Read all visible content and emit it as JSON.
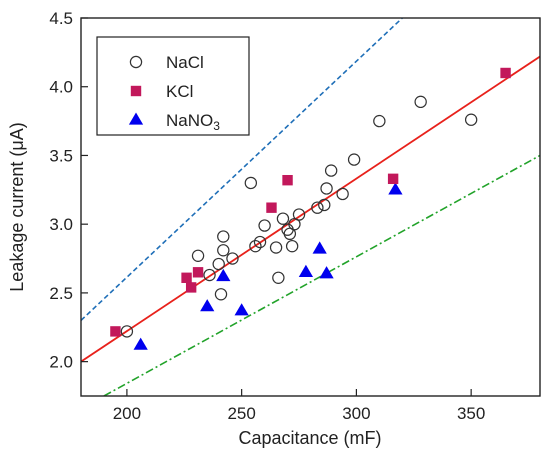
{
  "chart_data": {
    "type": "scatter",
    "xlabel": "Capacitance (mF)",
    "ylabel": "Leakage current (μA)",
    "xlim": [
      180,
      380
    ],
    "ylim": [
      1.75,
      4.5
    ],
    "xticks": [
      "200",
      "250",
      "300",
      "350"
    ],
    "xtick_values": [
      200,
      250,
      300,
      350
    ],
    "yticks": [
      "2.0",
      "2.5",
      "3.0",
      "3.5",
      "4.0",
      "4.5"
    ],
    "ytick_values": [
      2.0,
      2.5,
      3.0,
      3.5,
      4.0,
      4.5
    ],
    "legend_position": "top-left",
    "series": [
      {
        "name": "NaCl",
        "marker": "open-circle",
        "color": "#333333",
        "points": [
          [
            200,
            2.22
          ],
          [
            236,
            2.63
          ],
          [
            240,
            2.71
          ],
          [
            241,
            2.49
          ],
          [
            242,
            2.81
          ],
          [
            242,
            2.91
          ],
          [
            231,
            2.77
          ],
          [
            246,
            2.75
          ],
          [
            254,
            3.3
          ],
          [
            256,
            2.84
          ],
          [
            258,
            2.87
          ],
          [
            260,
            2.99
          ],
          [
            265,
            2.83
          ],
          [
            266,
            2.61
          ],
          [
            268,
            3.04
          ],
          [
            270,
            2.96
          ],
          [
            271,
            2.93
          ],
          [
            272,
            2.84
          ],
          [
            273,
            3.0
          ],
          [
            275,
            3.07
          ],
          [
            283,
            3.12
          ],
          [
            286,
            3.14
          ],
          [
            287,
            3.26
          ],
          [
            289,
            3.39
          ],
          [
            294,
            3.22
          ],
          [
            299,
            3.47
          ],
          [
            310,
            3.75
          ],
          [
            328,
            3.89
          ],
          [
            350,
            3.76
          ]
        ]
      },
      {
        "name": "KCl",
        "marker": "square",
        "color": "#c2185b",
        "points": [
          [
            195,
            2.22
          ],
          [
            226,
            2.61
          ],
          [
            228,
            2.54
          ],
          [
            231,
            2.65
          ],
          [
            263,
            3.12
          ],
          [
            270,
            3.32
          ],
          [
            316,
            3.33
          ],
          [
            365,
            4.1
          ]
        ]
      },
      {
        "name": "NaNO₃",
        "legend_text": "NaNO",
        "legend_sub": "3",
        "marker": "triangle",
        "color": "#0000ee",
        "points": [
          [
            206,
            2.12
          ],
          [
            235,
            2.4
          ],
          [
            242,
            2.62
          ],
          [
            250,
            2.37
          ],
          [
            278,
            2.65
          ],
          [
            284,
            2.82
          ],
          [
            287,
            2.64
          ],
          [
            317,
            3.25
          ]
        ]
      }
    ],
    "lines": [
      {
        "style": "dashed",
        "color": "#1f6fb8",
        "points": [
          [
            180,
            2.3
          ],
          [
            320,
            4.5
          ]
        ]
      },
      {
        "style": "solid",
        "color": "#e8211b",
        "points": [
          [
            180,
            2.0
          ],
          [
            380,
            4.22
          ]
        ]
      },
      {
        "style": "dash-dot",
        "color": "#22a32a",
        "points": [
          [
            190,
            1.75
          ],
          [
            380,
            3.5
          ]
        ]
      }
    ]
  }
}
